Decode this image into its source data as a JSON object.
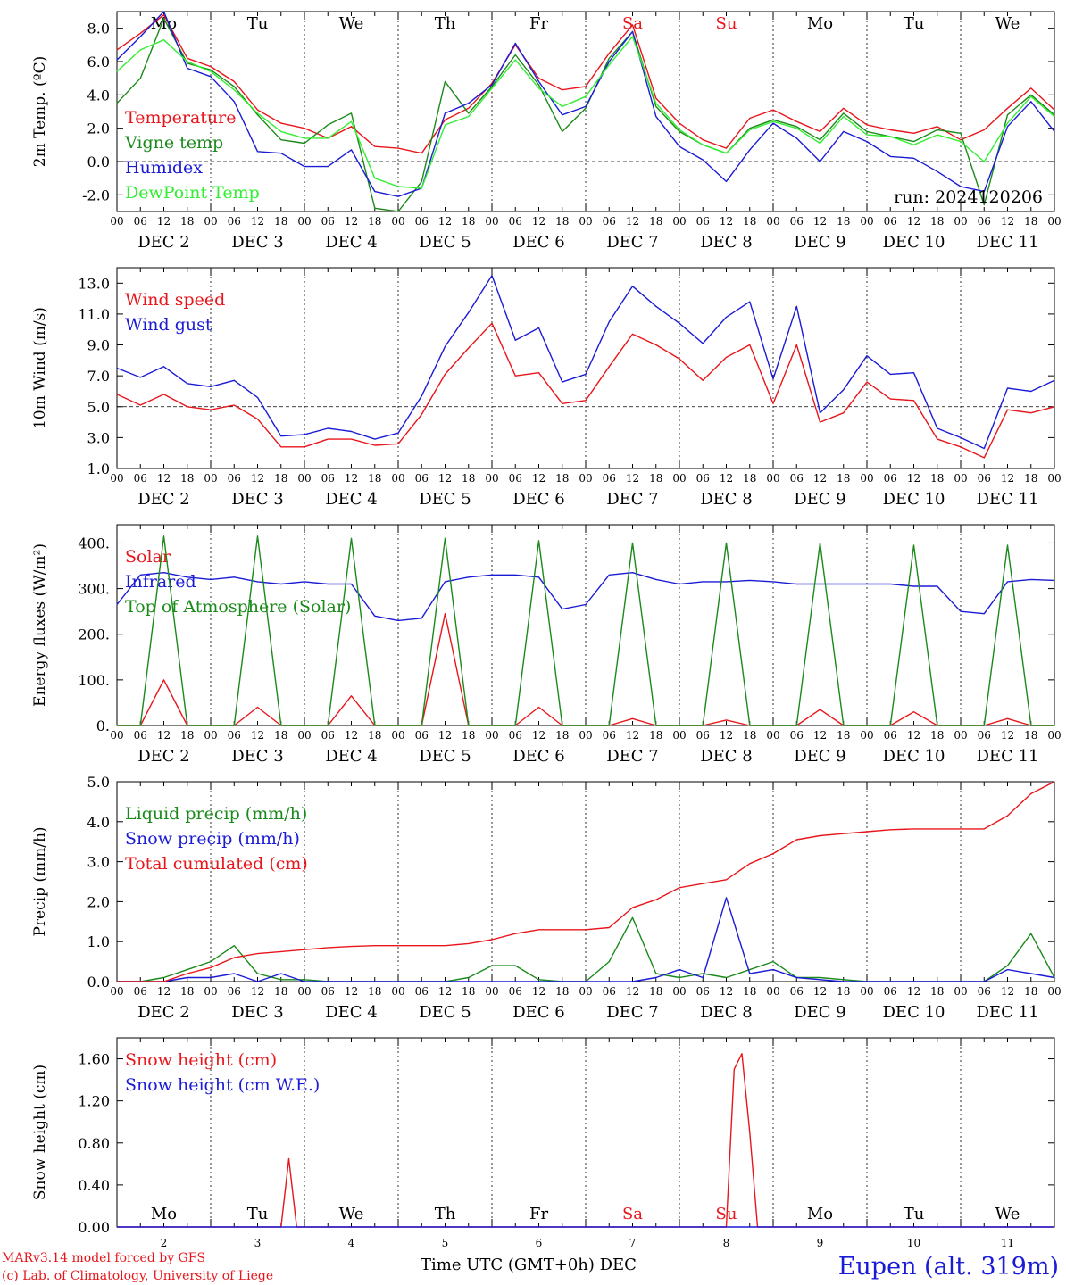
{
  "credits": {
    "line1": "MARv3.14 model forced by GFS",
    "line2": "(c) Lab. of Climatology, University of Liege"
  },
  "station": "Eupen (alt. 319m)",
  "x_axis_title": "Time UTC (GMT+0h) DEC",
  "run_label": "run: 2024120206",
  "hour_ticks": [
    "00",
    "06",
    "12",
    "18"
  ],
  "days": [
    "DEC  2",
    "DEC  3",
    "DEC  4",
    "DEC  5",
    "DEC  6",
    "DEC  7",
    "DEC  8",
    "DEC  9",
    "DEC 10",
    "DEC 11"
  ],
  "day_numbers": [
    "2",
    "3",
    "4",
    "5",
    "6",
    "7",
    "8",
    "9",
    "10",
    "11"
  ],
  "weekdays": [
    "Mo",
    "Tu",
    "We",
    "Th",
    "Fr",
    "Sa",
    "Su",
    "Mo",
    "Tu",
    "We"
  ],
  "weekday_colors": [
    "#000000",
    "#000000",
    "#000000",
    "#000000",
    "#000000",
    "#e8161b",
    "#e8161b",
    "#000000",
    "#000000",
    "#000000"
  ],
  "chart_data": [
    {
      "type": "line",
      "ylabel": "2m Temp. (ºC)",
      "ylim": [
        -3,
        9
      ],
      "yticks": [
        "-2.0",
        "0.0",
        "2.0",
        "4.0",
        "6.0",
        "8.0"
      ],
      "ytick_values": [
        -2,
        0,
        2,
        4,
        6,
        8
      ],
      "reference_line": 0,
      "x": [
        0,
        6,
        12,
        18,
        24,
        30,
        36,
        42,
        48,
        54,
        60,
        66,
        72,
        78,
        84,
        90,
        96,
        102,
        108,
        114,
        120,
        126,
        132,
        138,
        144,
        150,
        156,
        162,
        168,
        174,
        180,
        186,
        192,
        198,
        204,
        210,
        216,
        222,
        228,
        234,
        240
      ],
      "series": [
        {
          "name": "Temperature",
          "color": "#e8161b",
          "values": [
            6.7,
            7.7,
            8.8,
            6.2,
            5.7,
            4.8,
            3.1,
            2.3,
            2.0,
            1.4,
            2.1,
            0.9,
            0.8,
            0.5,
            2.5,
            3.2,
            4.7,
            7.0,
            5.0,
            4.3,
            4.5,
            6.5,
            8.2,
            3.8,
            2.3,
            1.3,
            0.8,
            2.6,
            3.1,
            2.4,
            1.8,
            3.2,
            2.2,
            1.9,
            1.7,
            2.1,
            1.3,
            1.9,
            3.2,
            4.4,
            3.1
          ]
        },
        {
          "name": "Vigne temp",
          "color": "#1a8a1a",
          "values": [
            3.5,
            5.0,
            8.6,
            5.9,
            5.5,
            4.5,
            2.8,
            1.3,
            1.1,
            2.2,
            2.9,
            -2.8,
            -3.0,
            -1.2,
            4.8,
            2.9,
            4.5,
            6.4,
            4.6,
            1.8,
            3.2,
            6.2,
            7.8,
            3.3,
            1.8,
            1.0,
            0.5,
            2.0,
            2.5,
            2.1,
            1.3,
            2.9,
            1.8,
            1.5,
            1.2,
            1.9,
            1.7,
            -2.6,
            2.8,
            4.0,
            2.8
          ]
        },
        {
          "name": "Humidex",
          "color": "#1b1bd6",
          "values": [
            6.1,
            7.5,
            9.0,
            5.6,
            5.1,
            3.6,
            0.6,
            0.5,
            -0.3,
            -0.3,
            0.7,
            -1.8,
            -2.1,
            -1.6,
            2.9,
            3.5,
            4.6,
            7.1,
            4.8,
            2.8,
            3.3,
            6.0,
            7.8,
            2.7,
            0.9,
            0.1,
            -1.2,
            0.7,
            2.3,
            1.4,
            0.0,
            1.8,
            1.2,
            0.3,
            0.2,
            -0.6,
            -1.5,
            -1.8,
            2.1,
            3.6,
            1.8
          ]
        },
        {
          "name": "DewPoint Temp",
          "color": "#33ee33",
          "values": [
            5.4,
            6.7,
            7.3,
            6.0,
            5.4,
            4.3,
            2.9,
            1.8,
            1.4,
            1.4,
            2.4,
            -1.0,
            -1.5,
            -1.6,
            2.2,
            2.7,
            4.4,
            6.1,
            4.4,
            3.3,
            3.9,
            5.8,
            7.5,
            3.5,
            1.9,
            1.0,
            0.5,
            1.9,
            2.4,
            2.0,
            1.1,
            2.7,
            1.6,
            1.5,
            1.0,
            1.6,
            1.2,
            0.0,
            2.3,
            3.9,
            2.7
          ]
        }
      ]
    },
    {
      "type": "line",
      "ylabel": "10m Wind (m/s)",
      "ylim": [
        1,
        14
      ],
      "yticks": [
        "1.0",
        "3.0",
        "5.0",
        "7.0",
        "9.0",
        "11.0",
        "13.0"
      ],
      "ytick_values": [
        1,
        3,
        5,
        7,
        9,
        11,
        13
      ],
      "reference_line": 5,
      "x": [
        0,
        6,
        12,
        18,
        24,
        30,
        36,
        42,
        48,
        54,
        60,
        66,
        72,
        78,
        84,
        90,
        96,
        102,
        108,
        114,
        120,
        126,
        132,
        138,
        144,
        150,
        156,
        162,
        168,
        174,
        180,
        186,
        192,
        198,
        204,
        210,
        216,
        222,
        228,
        234,
        240
      ],
      "series": [
        {
          "name": "Wind speed",
          "color": "#e8161b",
          "values": [
            5.8,
            5.1,
            5.8,
            5.0,
            4.8,
            5.1,
            4.2,
            2.4,
            2.4,
            2.9,
            2.9,
            2.5,
            2.6,
            4.5,
            7.1,
            8.8,
            10.4,
            7.0,
            7.2,
            5.2,
            5.4,
            7.6,
            9.7,
            9.0,
            8.1,
            6.7,
            8.2,
            9.0,
            5.2,
            9.0,
            4.0,
            4.6,
            6.6,
            5.5,
            5.4,
            2.9,
            2.4,
            1.7,
            4.8,
            4.6,
            5.0
          ]
        },
        {
          "name": "Wind gust",
          "color": "#1b1bd6",
          "values": [
            7.5,
            6.9,
            7.6,
            6.5,
            6.3,
            6.7,
            5.6,
            3.1,
            3.2,
            3.6,
            3.4,
            2.9,
            3.3,
            5.7,
            8.9,
            11.1,
            13.5,
            9.3,
            10.1,
            6.6,
            7.1,
            10.5,
            12.8,
            11.5,
            10.4,
            9.1,
            10.8,
            11.8,
            6.8,
            11.5,
            4.6,
            6.1,
            8.3,
            7.1,
            7.2,
            3.6,
            3.0,
            2.3,
            6.2,
            6.0,
            6.7
          ]
        }
      ]
    },
    {
      "type": "line",
      "ylabel": "Energy fluxes (W/m²)",
      "ylim": [
        0,
        440
      ],
      "yticks": [
        "0.",
        "100.",
        "200.",
        "300.",
        "400."
      ],
      "ytick_values": [
        0,
        100,
        200,
        300,
        400
      ],
      "reference_line": null,
      "x": [
        0,
        6,
        12,
        18,
        24,
        30,
        36,
        42,
        48,
        54,
        60,
        66,
        72,
        78,
        84,
        90,
        96,
        102,
        108,
        114,
        120,
        126,
        132,
        138,
        144,
        150,
        156,
        162,
        168,
        174,
        180,
        186,
        192,
        198,
        204,
        210,
        216,
        222,
        228,
        234,
        240
      ],
      "series": [
        {
          "name": "Solar",
          "color": "#e8161b",
          "values": [
            0,
            0,
            100,
            0,
            0,
            0,
            40,
            0,
            0,
            0,
            65,
            0,
            0,
            0,
            245,
            0,
            0,
            0,
            40,
            0,
            0,
            0,
            15,
            0,
            0,
            0,
            12,
            0,
            0,
            0,
            35,
            0,
            0,
            0,
            30,
            0,
            0,
            0,
            15,
            0,
            0
          ]
        },
        {
          "name": "Infrared",
          "color": "#1b1bd6",
          "values": [
            265,
            330,
            335,
            325,
            320,
            325,
            315,
            310,
            315,
            310,
            310,
            240,
            230,
            235,
            315,
            325,
            330,
            330,
            325,
            255,
            265,
            330,
            335,
            320,
            310,
            315,
            315,
            318,
            315,
            310,
            310,
            310,
            310,
            310,
            305,
            305,
            250,
            245,
            315,
            320,
            318
          ]
        },
        {
          "name": "Top of Atmosphere (Solar)",
          "color": "#1a8a1a",
          "values": [
            0,
            0,
            415,
            0,
            0,
            0,
            415,
            0,
            0,
            0,
            410,
            0,
            0,
            0,
            410,
            0,
            0,
            0,
            405,
            0,
            0,
            0,
            400,
            0,
            0,
            0,
            400,
            0,
            0,
            0,
            400,
            0,
            0,
            0,
            395,
            0,
            0,
            0,
            395,
            0,
            0
          ]
        }
      ]
    },
    {
      "type": "line",
      "ylabel": "Precip (mm/h)",
      "ylim": [
        0,
        5
      ],
      "yticks": [
        "0.0",
        "1.0",
        "2.0",
        "3.0",
        "4.0",
        "5.0"
      ],
      "ytick_values": [
        0,
        1,
        2,
        3,
        4,
        5
      ],
      "reference_line": null,
      "x": [
        0,
        6,
        12,
        18,
        24,
        30,
        36,
        42,
        48,
        54,
        60,
        66,
        72,
        78,
        84,
        90,
        96,
        102,
        108,
        114,
        120,
        126,
        132,
        138,
        144,
        150,
        156,
        162,
        168,
        174,
        180,
        186,
        192,
        198,
        204,
        210,
        216,
        222,
        228,
        234,
        240
      ],
      "series": [
        {
          "name": "Liquid precip (mm/h)",
          "color": "#1a8a1a",
          "values": [
            0,
            0,
            0.1,
            0.3,
            0.5,
            0.9,
            0.2,
            0.05,
            0.05,
            0,
            0,
            0,
            0,
            0,
            0,
            0.1,
            0.4,
            0.4,
            0.05,
            0,
            0,
            0.5,
            1.6,
            0.2,
            0.1,
            0.2,
            0.1,
            0.3,
            0.5,
            0.1,
            0.1,
            0.05,
            0,
            0,
            0,
            0,
            0,
            0,
            0.4,
            1.2,
            0.1
          ]
        },
        {
          "name": "Snow precip (mm/h)",
          "color": "#1b1bd6",
          "values": [
            0,
            0,
            0,
            0.1,
            0.1,
            0.2,
            0,
            0.2,
            0,
            0,
            0,
            0,
            0,
            0,
            0,
            0,
            0,
            0,
            0,
            0,
            0,
            0,
            0,
            0.1,
            0.3,
            0.1,
            2.1,
            0.2,
            0.3,
            0.1,
            0.05,
            0,
            0,
            0,
            0,
            0,
            0,
            0,
            0.3,
            0.2,
            0.1
          ]
        },
        {
          "name": "Total cumulated (cm)",
          "color": "#e8161b",
          "values": [
            0,
            0,
            0,
            0.2,
            0.35,
            0.6,
            0.7,
            0.75,
            0.8,
            0.85,
            0.88,
            0.9,
            0.9,
            0.9,
            0.9,
            0.95,
            1.05,
            1.2,
            1.3,
            1.3,
            1.3,
            1.35,
            1.85,
            2.05,
            2.35,
            2.45,
            2.55,
            2.95,
            3.2,
            3.55,
            3.65,
            3.7,
            3.75,
            3.8,
            3.82,
            3.82,
            3.82,
            3.82,
            4.15,
            4.7,
            5.0
          ]
        }
      ]
    },
    {
      "type": "line",
      "ylabel": "Snow height (cm)",
      "ylim": [
        0,
        1.8
      ],
      "yticks": [
        "0.00",
        "0.40",
        "0.80",
        "1.20",
        "1.60"
      ],
      "ytick_values": [
        0,
        0.4,
        0.8,
        1.2,
        1.6
      ],
      "reference_line": null,
      "x": [
        0,
        6,
        12,
        18,
        24,
        30,
        36,
        42,
        44,
        46,
        48,
        54,
        60,
        66,
        72,
        78,
        84,
        90,
        96,
        102,
        108,
        114,
        120,
        126,
        132,
        138,
        144,
        150,
        156,
        158,
        160,
        162,
        164,
        168,
        174,
        180,
        186,
        192,
        198,
        204,
        210,
        216,
        222,
        228,
        234,
        240
      ],
      "series": [
        {
          "name": "Snow height (cm)",
          "color": "#e8161b",
          "values": [
            0,
            0,
            0,
            0,
            0,
            0,
            0,
            0,
            0.65,
            0,
            0,
            0,
            0,
            0,
            0,
            0,
            0,
            0,
            0,
            0,
            0,
            0,
            0,
            0,
            0,
            0,
            0,
            0,
            0,
            1.5,
            1.65,
            0.9,
            0,
            0,
            0,
            0,
            0,
            0,
            0,
            0,
            0,
            0,
            0,
            0,
            0,
            0
          ]
        },
        {
          "name": "Snow height (cm W.E.)",
          "color": "#1b1bd6",
          "values": [
            0,
            0,
            0,
            0,
            0,
            0,
            0,
            0,
            0,
            0,
            0,
            0,
            0,
            0,
            0,
            0,
            0,
            0,
            0,
            0,
            0,
            0,
            0,
            0,
            0,
            0,
            0,
            0,
            0,
            0,
            0,
            0,
            0,
            0,
            0,
            0,
            0,
            0,
            0,
            0,
            0,
            0,
            0,
            0,
            0,
            0
          ]
        }
      ]
    }
  ]
}
